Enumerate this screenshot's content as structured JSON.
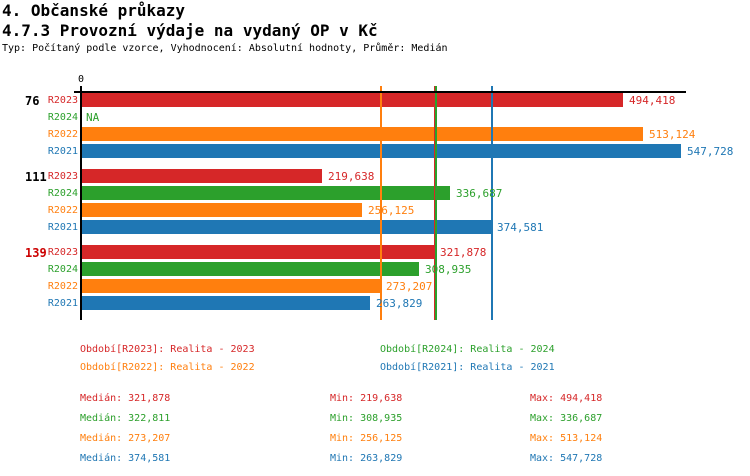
{
  "header": {
    "title": "4. Občanské průkazy",
    "subtitle": "4.7.3 Provozní výdaje na vydaný OP v Kč",
    "meta": "Typ: Počítaný podle vzorce, Vyhodnocení: Absolutní hodnoty, Průměr: Medián"
  },
  "colors": {
    "R2023": "#d62728",
    "R2024": "#2ca02c",
    "R2022": "#ff7f0e",
    "R2021": "#1f77b4",
    "axis": "#000000",
    "alert_group_label": "#cc0000"
  },
  "chart_data": {
    "type": "bar",
    "orientation": "horizontal",
    "axis": {
      "zero_label": "0",
      "min_value": 0,
      "max_value": 547728
    },
    "series_order": [
      "R2023",
      "R2024",
      "R2022",
      "R2021"
    ],
    "groups": [
      {
        "label": "76",
        "label_color": "#000000",
        "bars": [
          {
            "series": "R2023",
            "value": 494418,
            "display": "494,418"
          },
          {
            "series": "R2024",
            "value": null,
            "display": "NA"
          },
          {
            "series": "R2022",
            "value": 513124,
            "display": "513,124"
          },
          {
            "series": "R2021",
            "value": 547728,
            "display": "547,728"
          }
        ]
      },
      {
        "label": "111",
        "label_color": "#000000",
        "bars": [
          {
            "series": "R2023",
            "value": 219638,
            "display": "219,638"
          },
          {
            "series": "R2024",
            "value": 336687,
            "display": "336,687"
          },
          {
            "series": "R2022",
            "value": 256125,
            "display": "256,125"
          },
          {
            "series": "R2021",
            "value": 374581,
            "display": "374,581"
          }
        ]
      },
      {
        "label": "139",
        "label_color": "#cc0000",
        "bars": [
          {
            "series": "R2023",
            "value": 321878,
            "display": "321,878"
          },
          {
            "series": "R2024",
            "value": 308935,
            "display": "308,935"
          },
          {
            "series": "R2022",
            "value": 273207,
            "display": "273,207"
          },
          {
            "series": "R2021",
            "value": 263829,
            "display": "263,829"
          }
        ]
      }
    ],
    "median_lines": [
      {
        "series": "R2023",
        "value": 321878
      },
      {
        "series": "R2024",
        "value": 322811
      },
      {
        "series": "R2022",
        "value": 273207
      },
      {
        "series": "R2021",
        "value": 374581
      }
    ]
  },
  "legend": [
    {
      "series": "R2023",
      "text": "Období[R2023]: Realita - 2023"
    },
    {
      "series": "R2024",
      "text": "Období[R2024]: Realita - 2024"
    },
    {
      "series": "R2022",
      "text": "Období[R2022]: Realita - 2022"
    },
    {
      "series": "R2021",
      "text": "Období[R2021]: Realita - 2021"
    }
  ],
  "stats": [
    {
      "series": "R2023",
      "median": "Medián: 321,878",
      "min": "Min: 219,638",
      "max": "Max: 494,418"
    },
    {
      "series": "R2024",
      "median": "Medián: 322,811",
      "min": "Min: 308,935",
      "max": "Max: 336,687"
    },
    {
      "series": "R2022",
      "median": "Medián: 273,207",
      "min": "Min: 256,125",
      "max": "Max: 513,124"
    },
    {
      "series": "R2021",
      "median": "Medián: 374,581",
      "min": "Min: 263,829",
      "max": "Max: 547,728"
    }
  ]
}
